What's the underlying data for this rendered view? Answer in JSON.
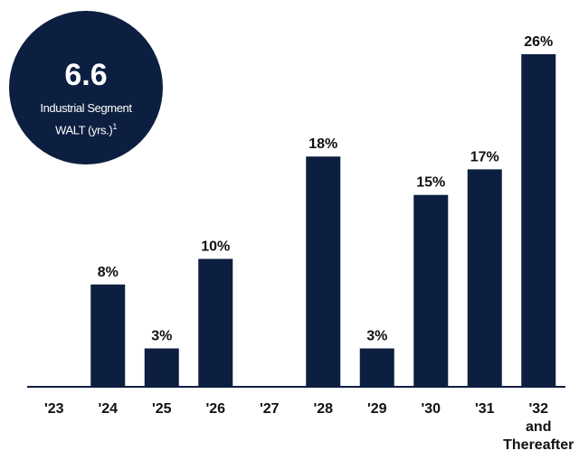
{
  "badge": {
    "value": "6.6",
    "label_line1": "Industrial Segment",
    "label_line2": "WALT (yrs.)",
    "footnote_mark": "1"
  },
  "colors": {
    "bar": "#0d1f40",
    "axis": "#0d1f40",
    "text": "#111111"
  },
  "chart_data": {
    "type": "bar",
    "categories": [
      "'23",
      "'24",
      "'25",
      "'26",
      "'27",
      "'28",
      "'29",
      "'30",
      "'31",
      "'32\nand\nThereafter"
    ],
    "values": [
      0,
      8,
      3,
      10,
      0,
      18,
      3,
      15,
      17,
      26
    ],
    "data_labels": [
      "",
      "8%",
      "3%",
      "10%",
      "",
      "18%",
      "3%",
      "15%",
      "17%",
      "26%"
    ],
    "unit": "%",
    "title": "",
    "xlabel": "",
    "ylabel": "",
    "ylim": [
      0,
      26
    ],
    "grid": false,
    "legend": "none"
  }
}
